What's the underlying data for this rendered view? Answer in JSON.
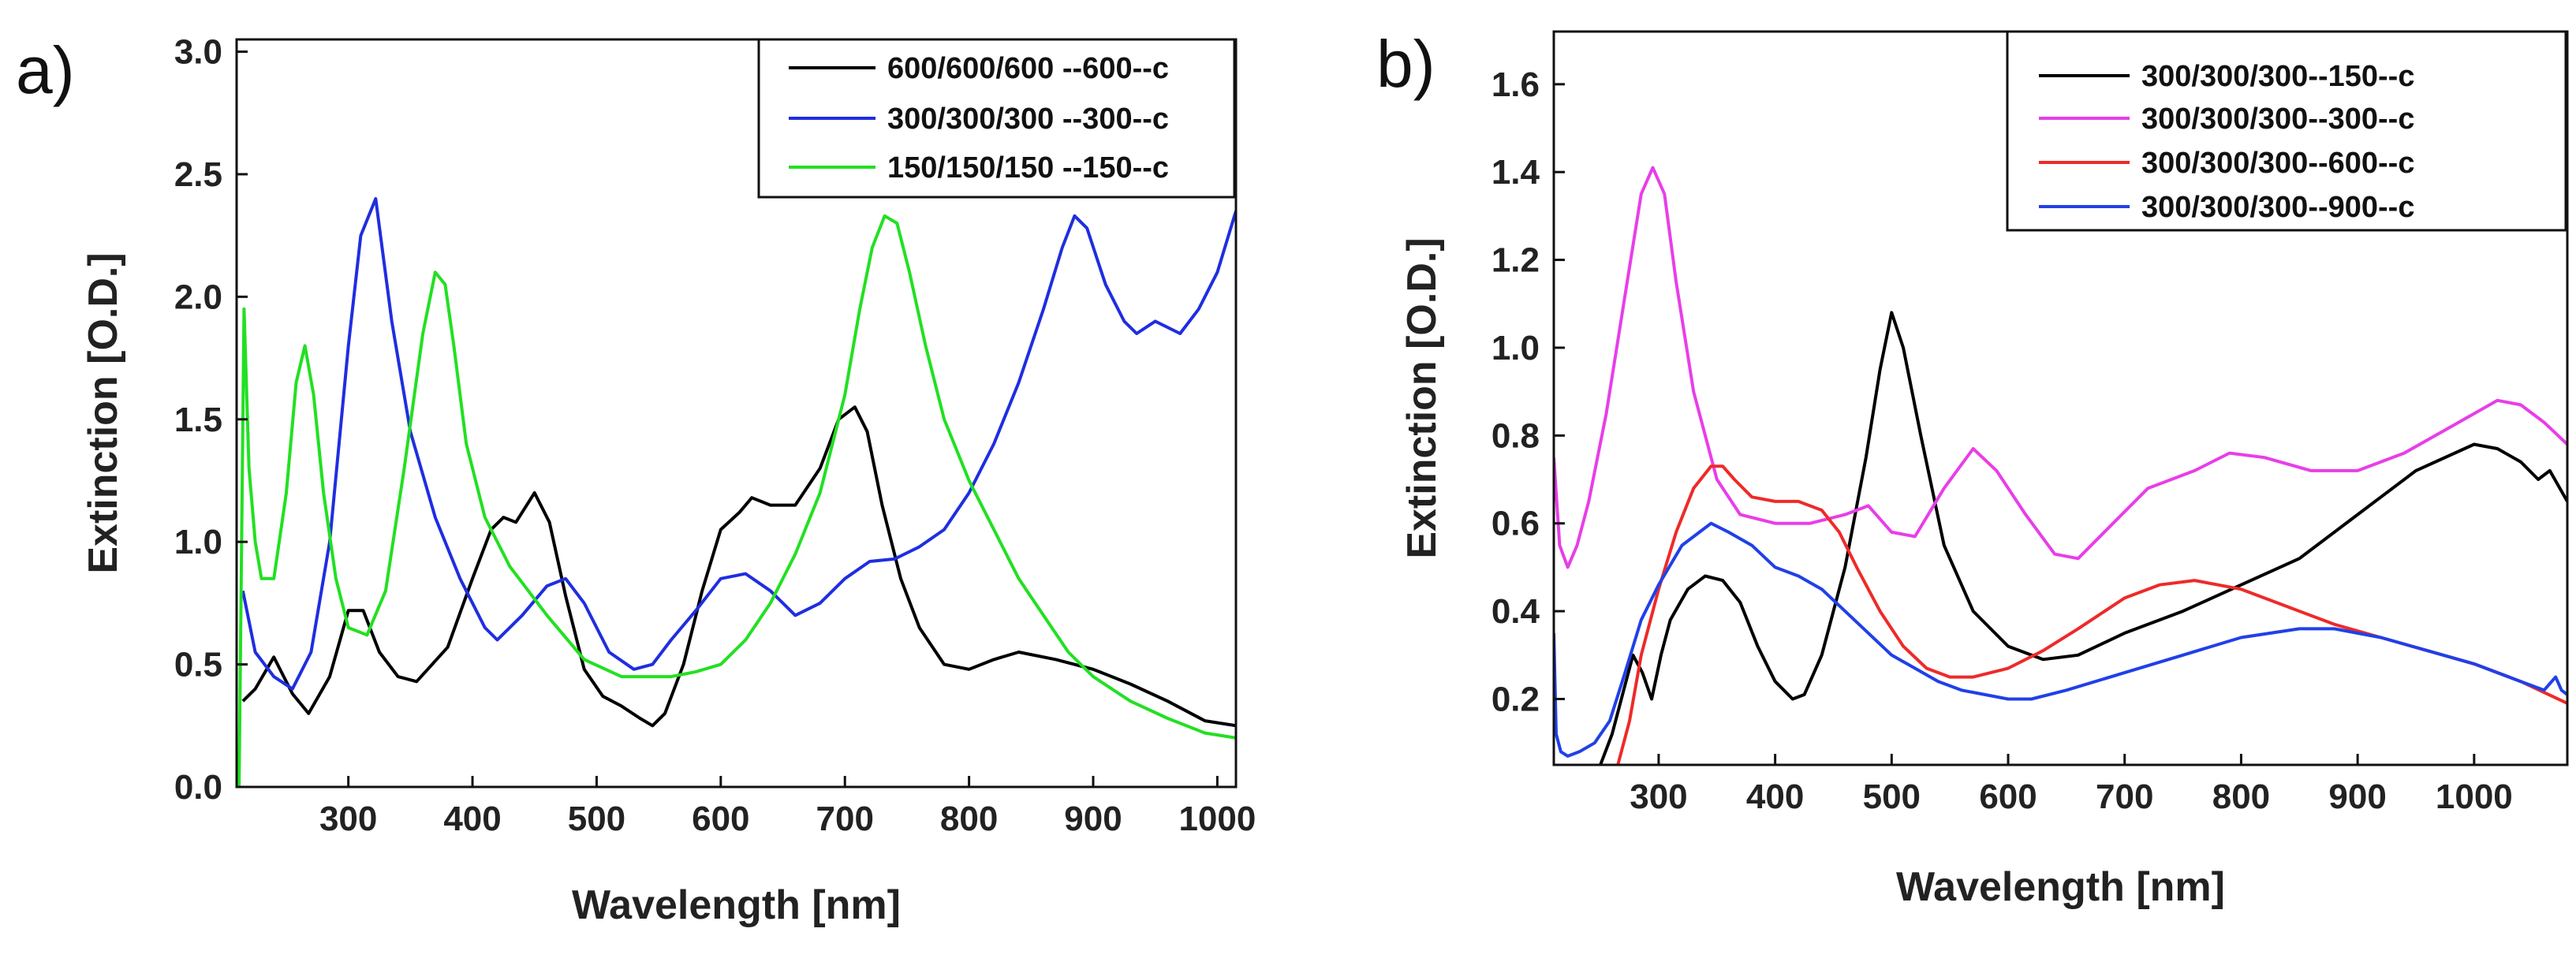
{
  "chart_data": [
    {
      "type": "line",
      "panel_label": "a)",
      "xlabel": "Wavelength [nm]",
      "ylabel": "Extinction [O.D.]",
      "xlim": [
        210,
        1015
      ],
      "ylim": [
        0,
        3.05
      ],
      "xticks": [
        300,
        400,
        500,
        600,
        700,
        800,
        900,
        1000
      ],
      "yticks": [
        0.0,
        0.5,
        1.0,
        1.5,
        2.0,
        2.5,
        3.0
      ],
      "ytick_labels": [
        "0.0",
        "0.5",
        "1.0",
        "1.5",
        "2.0",
        "2.5",
        "3.0"
      ],
      "grid": false,
      "legend_position": "top-right",
      "series": [
        {
          "name": "600/600/600 --600--c",
          "color": "#000000",
          "x": [
            215,
            225,
            240,
            255,
            268,
            285,
            300,
            312,
            325,
            340,
            355,
            380,
            400,
            415,
            425,
            435,
            450,
            462,
            475,
            490,
            505,
            520,
            535,
            545,
            555,
            570,
            585,
            600,
            615,
            625,
            640,
            660,
            680,
            695,
            708,
            718,
            730,
            745,
            760,
            780,
            800,
            820,
            840,
            870,
            900,
            930,
            960,
            990,
            1015
          ],
          "y": [
            0.35,
            0.4,
            0.53,
            0.38,
            0.3,
            0.45,
            0.72,
            0.72,
            0.55,
            0.45,
            0.43,
            0.57,
            0.85,
            1.05,
            1.1,
            1.08,
            1.2,
            1.08,
            0.78,
            0.48,
            0.37,
            0.33,
            0.28,
            0.25,
            0.3,
            0.5,
            0.8,
            1.05,
            1.12,
            1.18,
            1.15,
            1.15,
            1.3,
            1.5,
            1.55,
            1.45,
            1.15,
            0.85,
            0.65,
            0.5,
            0.48,
            0.52,
            0.55,
            0.52,
            0.48,
            0.42,
            0.35,
            0.27,
            0.25
          ]
        },
        {
          "name": "300/300/300 --300--c",
          "color": "#1f2ee0",
          "x": [
            215,
            225,
            240,
            255,
            270,
            285,
            300,
            310,
            322,
            335,
            350,
            370,
            390,
            410,
            420,
            440,
            460,
            475,
            490,
            510,
            530,
            545,
            560,
            580,
            600,
            620,
            640,
            660,
            680,
            700,
            720,
            740,
            760,
            780,
            800,
            820,
            840,
            860,
            875,
            885,
            895,
            910,
            925,
            935,
            950,
            970,
            985,
            1000,
            1015
          ],
          "y": [
            0.8,
            0.55,
            0.45,
            0.4,
            0.55,
            1.0,
            1.8,
            2.25,
            2.4,
            1.9,
            1.45,
            1.1,
            0.85,
            0.65,
            0.6,
            0.7,
            0.82,
            0.85,
            0.75,
            0.55,
            0.48,
            0.5,
            0.6,
            0.72,
            0.85,
            0.87,
            0.8,
            0.7,
            0.75,
            0.85,
            0.92,
            0.93,
            0.98,
            1.05,
            1.2,
            1.4,
            1.65,
            1.95,
            2.2,
            2.33,
            2.28,
            2.05,
            1.9,
            1.85,
            1.9,
            1.85,
            1.95,
            2.1,
            2.35
          ]
        },
        {
          "name": "150/150/150 --150--c",
          "color": "#22e022",
          "x": [
            212,
            216,
            220,
            225,
            230,
            240,
            250,
            258,
            265,
            272,
            280,
            290,
            300,
            315,
            330,
            345,
            360,
            370,
            378,
            385,
            395,
            410,
            430,
            460,
            490,
            520,
            540,
            560,
            580,
            600,
            620,
            640,
            660,
            680,
            700,
            712,
            722,
            732,
            742,
            752,
            765,
            780,
            800,
            820,
            840,
            860,
            880,
            900,
            930,
            960,
            990,
            1015
          ],
          "y": [
            0.0,
            1.95,
            1.3,
            1.0,
            0.85,
            0.85,
            1.2,
            1.65,
            1.8,
            1.6,
            1.2,
            0.85,
            0.65,
            0.62,
            0.8,
            1.3,
            1.85,
            2.1,
            2.05,
            1.8,
            1.4,
            1.1,
            0.9,
            0.7,
            0.52,
            0.45,
            0.45,
            0.45,
            0.47,
            0.5,
            0.6,
            0.75,
            0.95,
            1.2,
            1.6,
            1.95,
            2.2,
            2.33,
            2.3,
            2.1,
            1.8,
            1.5,
            1.25,
            1.05,
            0.85,
            0.7,
            0.55,
            0.45,
            0.35,
            0.28,
            0.22,
            0.2
          ]
        }
      ]
    },
    {
      "type": "line",
      "panel_label": "b)",
      "xlabel": "Wavelength [nm]",
      "ylabel": "Extinction [O.D.]",
      "xlim": [
        210,
        1080
      ],
      "ylim": [
        0.05,
        1.72
      ],
      "xticks": [
        300,
        400,
        500,
        600,
        700,
        800,
        900,
        1000
      ],
      "yticks": [
        0.2,
        0.4,
        0.6,
        0.8,
        1.0,
        1.2,
        1.4,
        1.6
      ],
      "ytick_labels": [
        "0.2",
        "0.4",
        "0.6",
        "0.8",
        "1.0",
        "1.2",
        "1.4",
        "1.6"
      ],
      "grid": false,
      "legend_position": "top-right",
      "series": [
        {
          "name": "300/300/300--150--c",
          "color": "#000000",
          "x": [
            250,
            260,
            270,
            278,
            286,
            294,
            302,
            310,
            325,
            340,
            355,
            370,
            385,
            400,
            415,
            425,
            440,
            460,
            478,
            490,
            500,
            510,
            525,
            545,
            570,
            600,
            630,
            660,
            700,
            750,
            800,
            850,
            900,
            950,
            1000,
            1020,
            1040,
            1055,
            1065,
            1080
          ],
          "y": [
            0.05,
            0.12,
            0.22,
            0.3,
            0.26,
            0.2,
            0.3,
            0.38,
            0.45,
            0.48,
            0.47,
            0.42,
            0.32,
            0.24,
            0.2,
            0.21,
            0.3,
            0.5,
            0.75,
            0.95,
            1.08,
            1.0,
            0.8,
            0.55,
            0.4,
            0.32,
            0.29,
            0.3,
            0.35,
            0.4,
            0.46,
            0.52,
            0.62,
            0.72,
            0.78,
            0.77,
            0.74,
            0.7,
            0.72,
            0.65
          ]
        },
        {
          "name": "300/300/300--300--c",
          "color": "#e83ee8",
          "x": [
            210,
            215,
            222,
            230,
            240,
            255,
            270,
            285,
            295,
            305,
            315,
            330,
            350,
            370,
            400,
            430,
            460,
            480,
            500,
            520,
            545,
            570,
            590,
            615,
            640,
            660,
            690,
            720,
            760,
            790,
            820,
            860,
            900,
            940,
            980,
            1020,
            1040,
            1060,
            1080
          ],
          "y": [
            0.75,
            0.55,
            0.5,
            0.55,
            0.65,
            0.85,
            1.1,
            1.35,
            1.41,
            1.35,
            1.15,
            0.9,
            0.7,
            0.62,
            0.6,
            0.6,
            0.62,
            0.64,
            0.58,
            0.57,
            0.68,
            0.77,
            0.72,
            0.62,
            0.53,
            0.52,
            0.6,
            0.68,
            0.72,
            0.76,
            0.75,
            0.72,
            0.72,
            0.76,
            0.82,
            0.88,
            0.87,
            0.83,
            0.78
          ]
        },
        {
          "name": "300/300/300--600--c",
          "color": "#ee2a2a",
          "x": [
            265,
            275,
            285,
            300,
            315,
            330,
            345,
            355,
            365,
            380,
            400,
            420,
            440,
            455,
            470,
            490,
            510,
            530,
            550,
            570,
            600,
            630,
            660,
            700,
            730,
            760,
            800,
            840,
            880,
            920,
            960,
            1000,
            1040,
            1080
          ],
          "y": [
            0.05,
            0.15,
            0.3,
            0.45,
            0.58,
            0.68,
            0.73,
            0.73,
            0.7,
            0.66,
            0.65,
            0.65,
            0.63,
            0.58,
            0.5,
            0.4,
            0.32,
            0.27,
            0.25,
            0.25,
            0.27,
            0.31,
            0.36,
            0.43,
            0.46,
            0.47,
            0.45,
            0.41,
            0.37,
            0.34,
            0.31,
            0.28,
            0.24,
            0.19
          ]
        },
        {
          "name": "300/300/300--900--c",
          "color": "#2040e8",
          "x": [
            210,
            212,
            216,
            222,
            232,
            245,
            258,
            270,
            285,
            300,
            320,
            345,
            360,
            380,
            400,
            420,
            440,
            460,
            480,
            500,
            520,
            540,
            560,
            580,
            600,
            620,
            650,
            700,
            750,
            800,
            850,
            880,
            920,
            960,
            1000,
            1040,
            1060,
            1070,
            1075,
            1080
          ],
          "y": [
            0.35,
            0.12,
            0.08,
            0.07,
            0.08,
            0.1,
            0.15,
            0.25,
            0.38,
            0.46,
            0.55,
            0.6,
            0.58,
            0.55,
            0.5,
            0.48,
            0.45,
            0.4,
            0.35,
            0.3,
            0.27,
            0.24,
            0.22,
            0.21,
            0.2,
            0.2,
            0.22,
            0.26,
            0.3,
            0.34,
            0.36,
            0.36,
            0.34,
            0.31,
            0.28,
            0.24,
            0.22,
            0.25,
            0.22,
            0.21
          ]
        }
      ]
    }
  ]
}
